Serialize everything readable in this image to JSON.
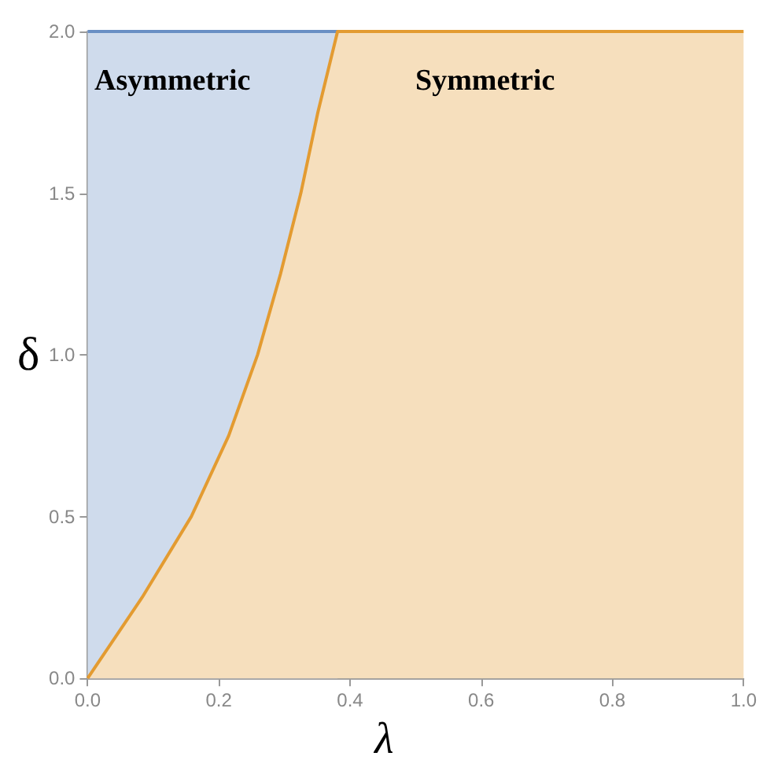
{
  "chart_data": {
    "type": "area",
    "xlabel": "λ",
    "ylabel": "δ",
    "x": [
      0,
      0.083,
      0.158,
      0.215,
      0.259,
      0.294,
      0.325,
      0.351,
      0.381,
      1.0
    ],
    "series": [
      {
        "color": "#cfdbec",
        "x": [
          0,
          0.381
        ],
        "values": [
          2,
          2
        ]
      },
      {
        "color": "#f6dfbd",
        "values": [
          0,
          0.25,
          0.5,
          0.75,
          1.0,
          1.25,
          1.5,
          1.75,
          2,
          2
        ]
      }
    ],
    "xlim": [
      0,
      1
    ],
    "xticks": [
      {
        "value": 0,
        "label": "0.0"
      },
      0.2,
      0.4,
      0.6,
      0.8,
      {
        "value": 1,
        "label": "1.0"
      }
    ],
    "ylim": [
      0,
      2
    ],
    "yticks": [
      {
        "value": 0,
        "label": "0.0"
      },
      0.5,
      {
        "value": 1,
        "label": "1.0"
      },
      1.5,
      {
        "value": 2,
        "label": "2.0"
      }
    ],
    "grid": false,
    "annotations": [
      "Asymmetric",
      "Symmetric"
    ]
  }
}
